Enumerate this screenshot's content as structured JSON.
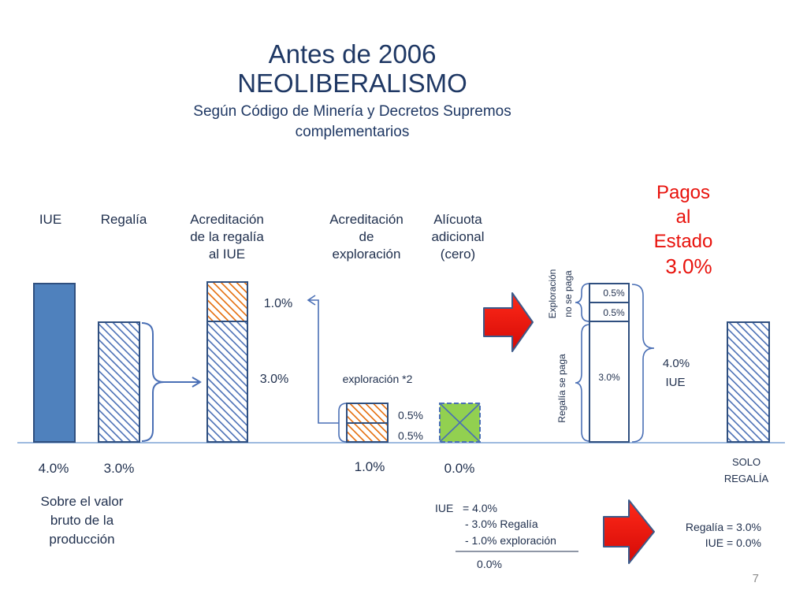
{
  "title": {
    "line1": "Antes de 2006",
    "line2": "NEOLIBERALISMO",
    "subtitle1": "Según Código de Minería y Decretos Supremos",
    "subtitle2": "complementarios"
  },
  "columns": {
    "iue": "IUE",
    "regalia": "Regalía",
    "acreditacion_regalia": [
      "Acreditación",
      "de la regalía",
      "al IUE"
    ],
    "acreditacion_exploracion": [
      "Acreditación",
      "de",
      "exploración"
    ],
    "alicuota": [
      "Alícuota",
      "adicional",
      "(cero)"
    ]
  },
  "pagos": [
    "Pagos",
    "al",
    "Estado",
    "3.0%"
  ],
  "bars": {
    "iue_value": "4.0%",
    "regalia_value": "3.0%",
    "acreditacion_top": "1.0%",
    "acreditacion_bottom": "3.0%",
    "exploracion_label": "exploración *2",
    "exploracion_top": "0.5%",
    "exploracion_bottom": "0.5%",
    "exploracion_value": "1.0%",
    "alicuota_value": "0.0%"
  },
  "stack": {
    "top": "0.5%",
    "middle": "0.5%",
    "bottom": "3.0%",
    "label_top": [
      "Exploración",
      "no se paga"
    ],
    "label_bottom": "Regalía se paga",
    "total": "4.0%",
    "total_label": "IUE"
  },
  "solo": [
    "SOLO",
    "REGALÍA"
  ],
  "note": [
    "Sobre el valor",
    "bruto de la",
    "producción"
  ],
  "calc": {
    "l1": "IUE   = 4.0%",
    "l2": "- 3.0% Regalía",
    "l3": "- 1.0% exploración",
    "result": "0.0%"
  },
  "final": {
    "l1": "Regalía = 3.0%",
    "l2": "IUE = 0.0%"
  },
  "page_number": "7",
  "colors": {
    "blue_solid": "#4f81bd",
    "hatch_blue": "#4a6fb5",
    "hatch_orange": "#e46c0a",
    "green": "#92d050",
    "red": "#e8120c",
    "navy_text": "#1f2f4d",
    "title": "#1f3864"
  }
}
